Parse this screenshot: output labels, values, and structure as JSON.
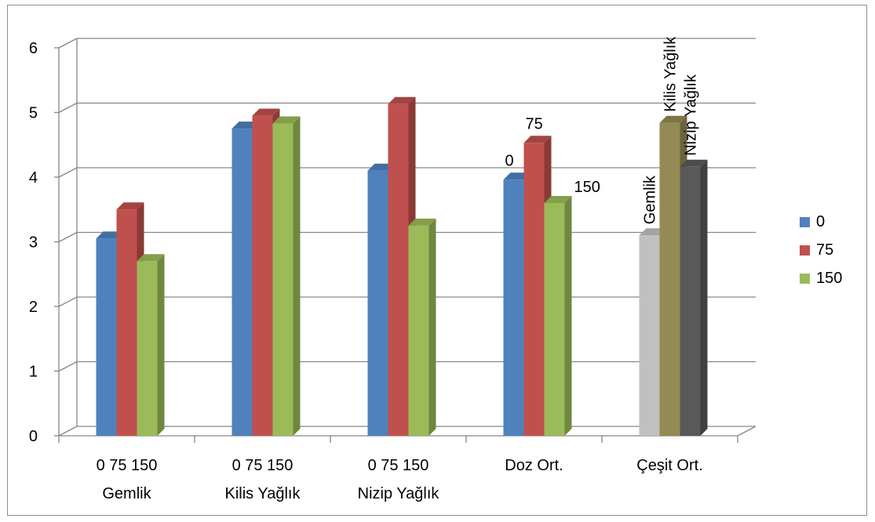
{
  "chart_data": {
    "type": "bar",
    "style": "3d-clustered-column",
    "ylim": [
      0,
      6
    ],
    "yticks": [
      "0",
      "1",
      "2",
      "3",
      "4",
      "5",
      "6"
    ],
    "grid": true,
    "legend_position": "right",
    "legend": [
      {
        "label": "0",
        "color": "#4f81bd"
      },
      {
        "label": "75",
        "color": "#c0504d"
      },
      {
        "label": "150",
        "color": "#9bbb59"
      }
    ],
    "groups": [
      {
        "label_top": "0 75  150",
        "label_bottom": "Gemlik",
        "bars": [
          {
            "value": 3.05,
            "color": "#4f81bd"
          },
          {
            "value": 3.5,
            "color": "#c0504d"
          },
          {
            "value": 2.7,
            "color": "#9bbb59"
          }
        ]
      },
      {
        "label_top": "0  75   150",
        "label_bottom": "Kilis Yağlık",
        "bars": [
          {
            "value": 4.75,
            "color": "#4f81bd"
          },
          {
            "value": 4.95,
            "color": "#c0504d"
          },
          {
            "value": 4.83,
            "color": "#9bbb59"
          }
        ]
      },
      {
        "label_top": "0   75 150",
        "label_bottom": "Nizip Yağlık",
        "bars": [
          {
            "value": 4.1,
            "color": "#4f81bd"
          },
          {
            "value": 5.13,
            "color": "#c0504d"
          },
          {
            "value": 3.25,
            "color": "#9bbb59"
          }
        ]
      },
      {
        "label_top": "Doz Ort.",
        "label_bottom": "",
        "bars": [
          {
            "value": 3.96,
            "color": "#4f81bd",
            "label": "0"
          },
          {
            "value": 4.53,
            "color": "#c0504d",
            "label": "75"
          },
          {
            "value": 3.6,
            "color": "#9bbb59",
            "label": "150"
          }
        ]
      },
      {
        "label_top": "Çeşit Ort.",
        "label_bottom": "",
        "bars": [
          {
            "value": 3.1,
            "color": "#c0c0c0",
            "label": "Gemlik",
            "vertical": true
          },
          {
            "value": 4.84,
            "color": "#948a54",
            "label": "Kilis Yağlık",
            "vertical": true
          },
          {
            "value": 4.16,
            "color": "#595959",
            "label": "Nizip Yağlık",
            "vertical": true
          }
        ]
      }
    ]
  }
}
